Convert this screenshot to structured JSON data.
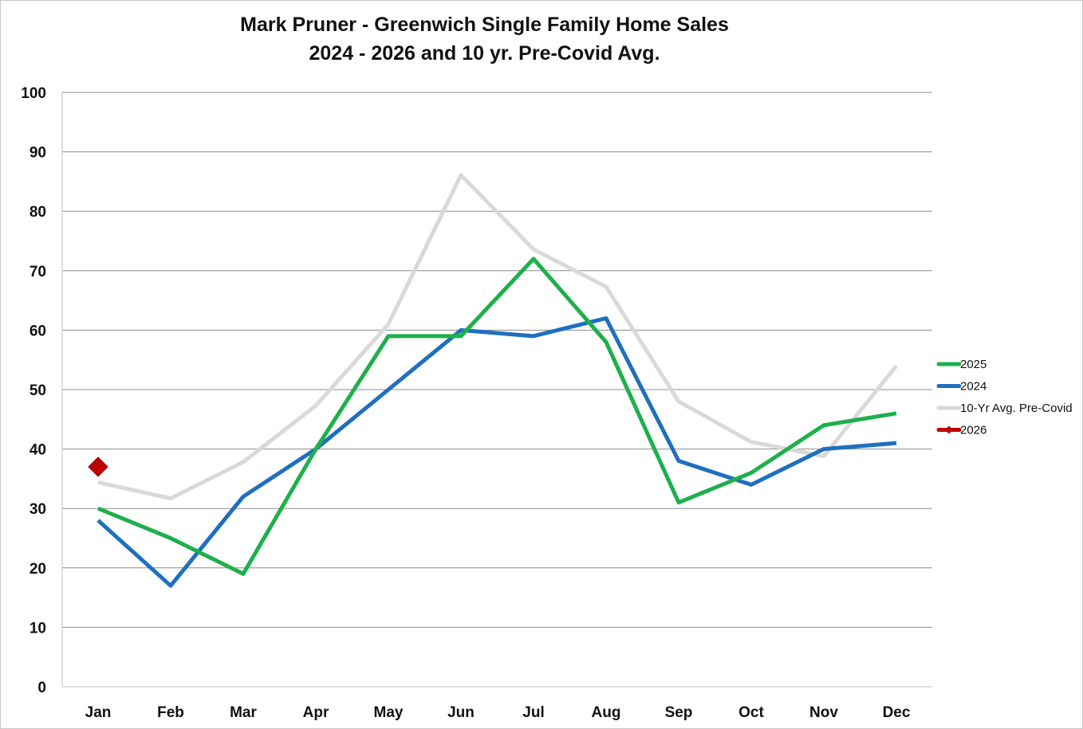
{
  "chart_data": {
    "type": "line",
    "title": "Mark Pruner - Greenwich Single Family Home Sales",
    "subtitle": "2024 - 2026 and 10 yr. Pre-Covid Avg.",
    "xlabel": "",
    "ylabel": "",
    "categories": [
      "Jan",
      "Feb",
      "Mar",
      "Apr",
      "May",
      "Jun",
      "Jul",
      "Aug",
      "Sep",
      "Oct",
      "Nov",
      "Dec"
    ],
    "ylim": [
      0,
      100
    ],
    "yticks": [
      0,
      10,
      20,
      30,
      40,
      50,
      60,
      70,
      80,
      90,
      100
    ],
    "grid": "horizontal",
    "legend_position": "right",
    "series": [
      {
        "name": "2025",
        "color": "#1db04b",
        "values": [
          30,
          25,
          19,
          40,
          59,
          59,
          72,
          58,
          31,
          36,
          44,
          46
        ]
      },
      {
        "name": "2024",
        "color": "#1f6fc0",
        "values": [
          28,
          17,
          32,
          40,
          50,
          60,
          59,
          62,
          38,
          34,
          40,
          41
        ]
      },
      {
        "name": "10-Yr Avg. Pre-Covid",
        "color": "#d9d9d9",
        "values": [
          34.4,
          31.7,
          37.8,
          47.3,
          61,
          86.1,
          73.6,
          67.3,
          48,
          41.2,
          38.8,
          54
        ]
      },
      {
        "name": "2026",
        "color": "#c00000",
        "marker": "diamond",
        "values": [
          37,
          null,
          null,
          null,
          null,
          null,
          null,
          null,
          null,
          null,
          null,
          null
        ]
      }
    ]
  }
}
